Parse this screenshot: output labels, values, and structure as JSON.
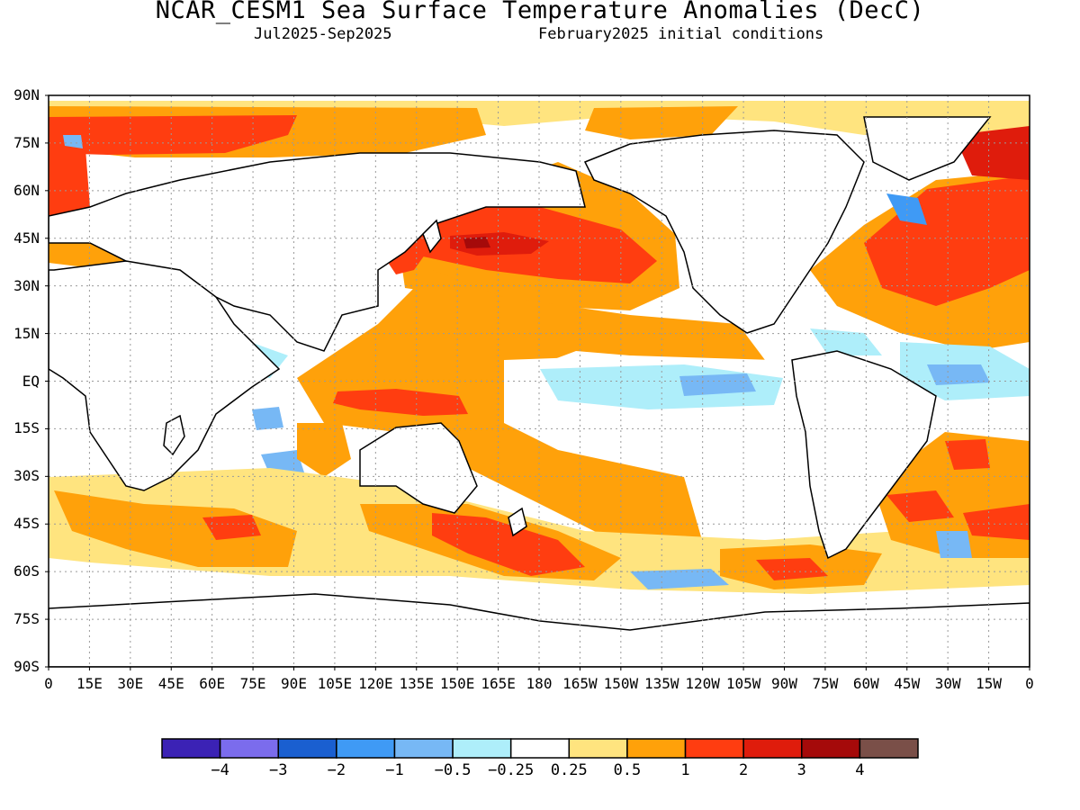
{
  "header": {
    "title": "NCAR_CESM1 Sea Surface Temperature Anomalies (DecC)",
    "period": "Jul2025-Sep2025",
    "initial_conditions": "February2025 initial conditions"
  },
  "map": {
    "lat_labels": [
      "90N",
      "75N",
      "60N",
      "45N",
      "30N",
      "15N",
      "EQ",
      "15S",
      "30S",
      "45S",
      "60S",
      "75S",
      "90S"
    ],
    "lon_labels": [
      "0",
      "15E",
      "30E",
      "45E",
      "60E",
      "75E",
      "90E",
      "105E",
      "120E",
      "135E",
      "150E",
      "165E",
      "180",
      "165W",
      "150W",
      "135W",
      "120W",
      "105W",
      "90W",
      "75W",
      "60W",
      "45W",
      "30W",
      "15W",
      "0"
    ],
    "grid": true
  },
  "colorbar": {
    "colors": [
      "#3b22b5",
      "#7b6ced",
      "#1a5fd0",
      "#3f9af5",
      "#77b8f5",
      "#aeeefa",
      "#ffffff",
      "#ffe47f",
      "#ffa10a",
      "#ff3d10",
      "#df1c0c",
      "#a50a0a",
      "#7a4f48"
    ],
    "tick_labels": [
      "-4",
      "-3",
      "-2",
      "-1",
      "-0.5",
      "-0.25",
      "0.25",
      "0.5",
      "1",
      "2",
      "3",
      "4"
    ]
  }
}
